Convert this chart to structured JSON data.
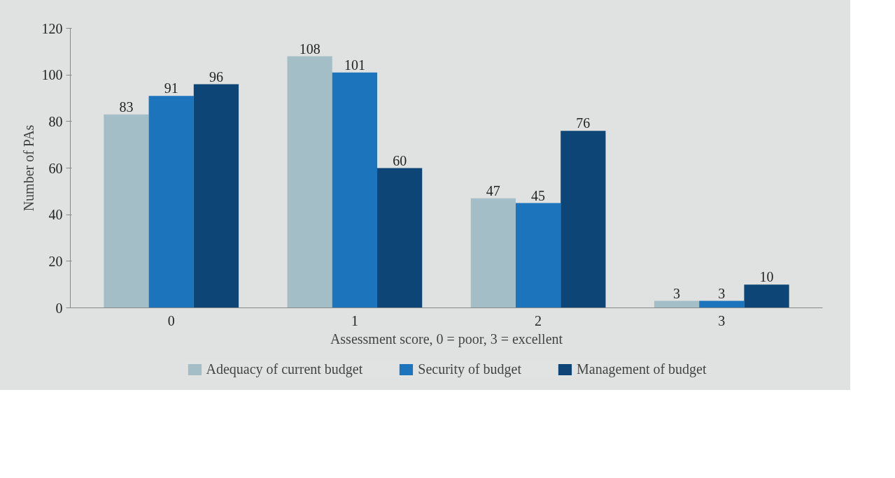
{
  "chart_data": {
    "type": "bar",
    "xlabel": "Assessment score, 0 = poor, 3 = excellent",
    "ylabel": "Number of PAs",
    "categories": [
      "0",
      "1",
      "2",
      "3"
    ],
    "series": [
      {
        "name": "Adequacy of current budget",
        "color": "#a3bec6",
        "values": [
          83,
          108,
          47,
          3
        ]
      },
      {
        "name": "Security of budget",
        "color": "#1c75bc",
        "values": [
          91,
          101,
          45,
          3
        ]
      },
      {
        "name": "Management of budget",
        "color": "#0d4676",
        "values": [
          96,
          60,
          76,
          10
        ]
      }
    ],
    "ylim": [
      0,
      120
    ],
    "yticks": [
      0,
      20,
      40,
      60,
      80,
      100,
      120
    ],
    "grid": false,
    "legend": "bottom",
    "data_labels": true
  }
}
